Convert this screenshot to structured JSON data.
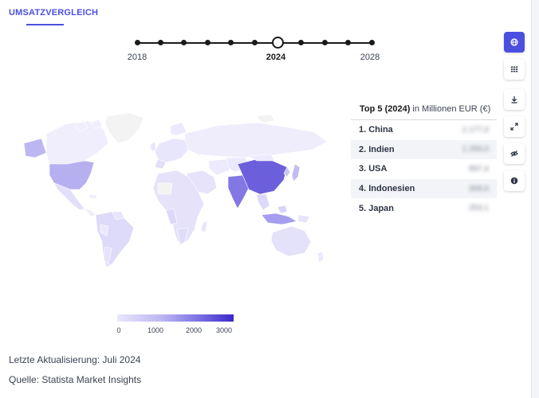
{
  "tab": {
    "label": "UMSATZVERGLEICH"
  },
  "timeline": {
    "start_label": "2018",
    "current_label": "2024",
    "end_label": "2028",
    "dot_count": 11,
    "current_index": 6
  },
  "legend": {
    "ticks": [
      "0",
      "1000",
      "2000",
      "3000"
    ]
  },
  "top5": {
    "title_bold": "Top 5 (2024)",
    "title_rest": " in Millionen EUR (€)",
    "rows": [
      {
        "rank": "1. China",
        "value": "2.177,0"
      },
      {
        "rank": "2. Indien",
        "value": "1.266,0"
      },
      {
        "rank": "3. USA",
        "value": "897,4"
      },
      {
        "rank": "4. Indonesien",
        "value": "308,6"
      },
      {
        "rank": "5. Japan",
        "value": "253,1"
      }
    ]
  },
  "toolbar": {
    "icons": [
      "globe-icon",
      "table-icon",
      "download-icon",
      "fullscreen-icon",
      "hide-icon",
      "info-icon"
    ]
  },
  "footer": {
    "updated": "Letzte Aktualisierung: Juli 2024",
    "source": "Quelle: Statista Market Insights"
  },
  "colors": {
    "accent": "#4a4fe0",
    "china": "#6b5fdc",
    "india": "#8378e3",
    "usa": "#b6aff0",
    "light": "#e5e2fa",
    "lighter": "#efedfc"
  }
}
